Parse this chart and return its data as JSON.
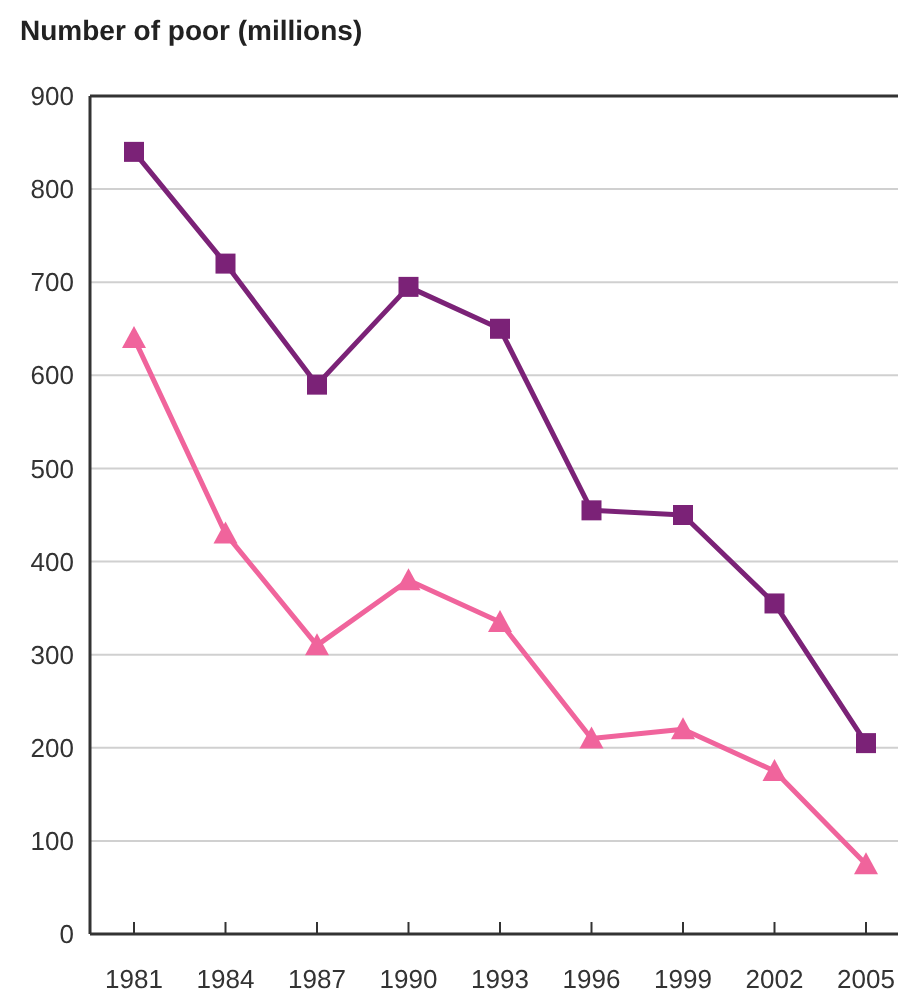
{
  "chart_data": {
    "type": "line",
    "title": "Number of poor (millions)",
    "categories": [
      "1981",
      "1984",
      "1987",
      "1990",
      "1993",
      "1996",
      "1999",
      "2002",
      "2005"
    ],
    "series": [
      {
        "color": "#7b2277",
        "marker": "square",
        "values": [
          840,
          720,
          590,
          695,
          650,
          455,
          450,
          355,
          205
        ]
      },
      {
        "color": "#f0649c",
        "marker": "triangle",
        "values": [
          640,
          430,
          310,
          380,
          335,
          210,
          220,
          175,
          75
        ]
      }
    ],
    "ylim": [
      0,
      900
    ],
    "yticks": [
      0,
      100,
      200,
      300,
      400,
      500,
      600,
      700,
      800,
      900
    ],
    "grid": "y"
  }
}
